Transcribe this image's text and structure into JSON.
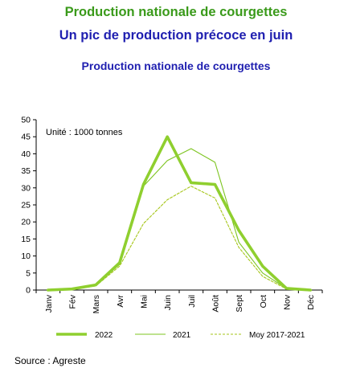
{
  "titles": {
    "main": "Production nationale de courgettes",
    "subtitle": "Un pic de production précoce en juin",
    "chart_title": "Production nationale de courgettes"
  },
  "source": "Source : Agreste",
  "colors": {
    "title_green": "#3a9a1a",
    "title_blue": "#1f1fb0",
    "series_green": "#8fcf2f",
    "series_thin": "#7cc41f",
    "series_dashed": "#a6c61a"
  },
  "chart_data": {
    "type": "line",
    "title": "Production nationale de courgettes",
    "annotation": "Unité : 1000 tonnes",
    "categories": [
      "Janv",
      "Fév",
      "Mars",
      "Avr",
      "Mai",
      "Juin",
      "Juil",
      "Août",
      "Sept",
      "Oct",
      "Nov",
      "Déc"
    ],
    "ylim": [
      0,
      50
    ],
    "yticks": [
      0,
      5,
      10,
      15,
      20,
      25,
      30,
      35,
      40,
      45,
      50
    ],
    "grid": false,
    "legend_position": "bottom",
    "series": [
      {
        "name": "2022",
        "style": "thick",
        "values": [
          0,
          0.3,
          1.5,
          8,
          31,
          45,
          31.5,
          31,
          17.5,
          7,
          0.5,
          0
        ]
      },
      {
        "name": "2021",
        "style": "thin",
        "values": [
          0,
          0.3,
          1.5,
          7.5,
          30.5,
          38,
          41.5,
          37.5,
          14,
          5,
          0.4,
          0
        ]
      },
      {
        "name": "Moy 2017-2021",
        "style": "dashed",
        "values": [
          0,
          0.2,
          1.2,
          7,
          19.5,
          26.5,
          30.5,
          27,
          12.5,
          4,
          0.3,
          0
        ]
      }
    ]
  }
}
